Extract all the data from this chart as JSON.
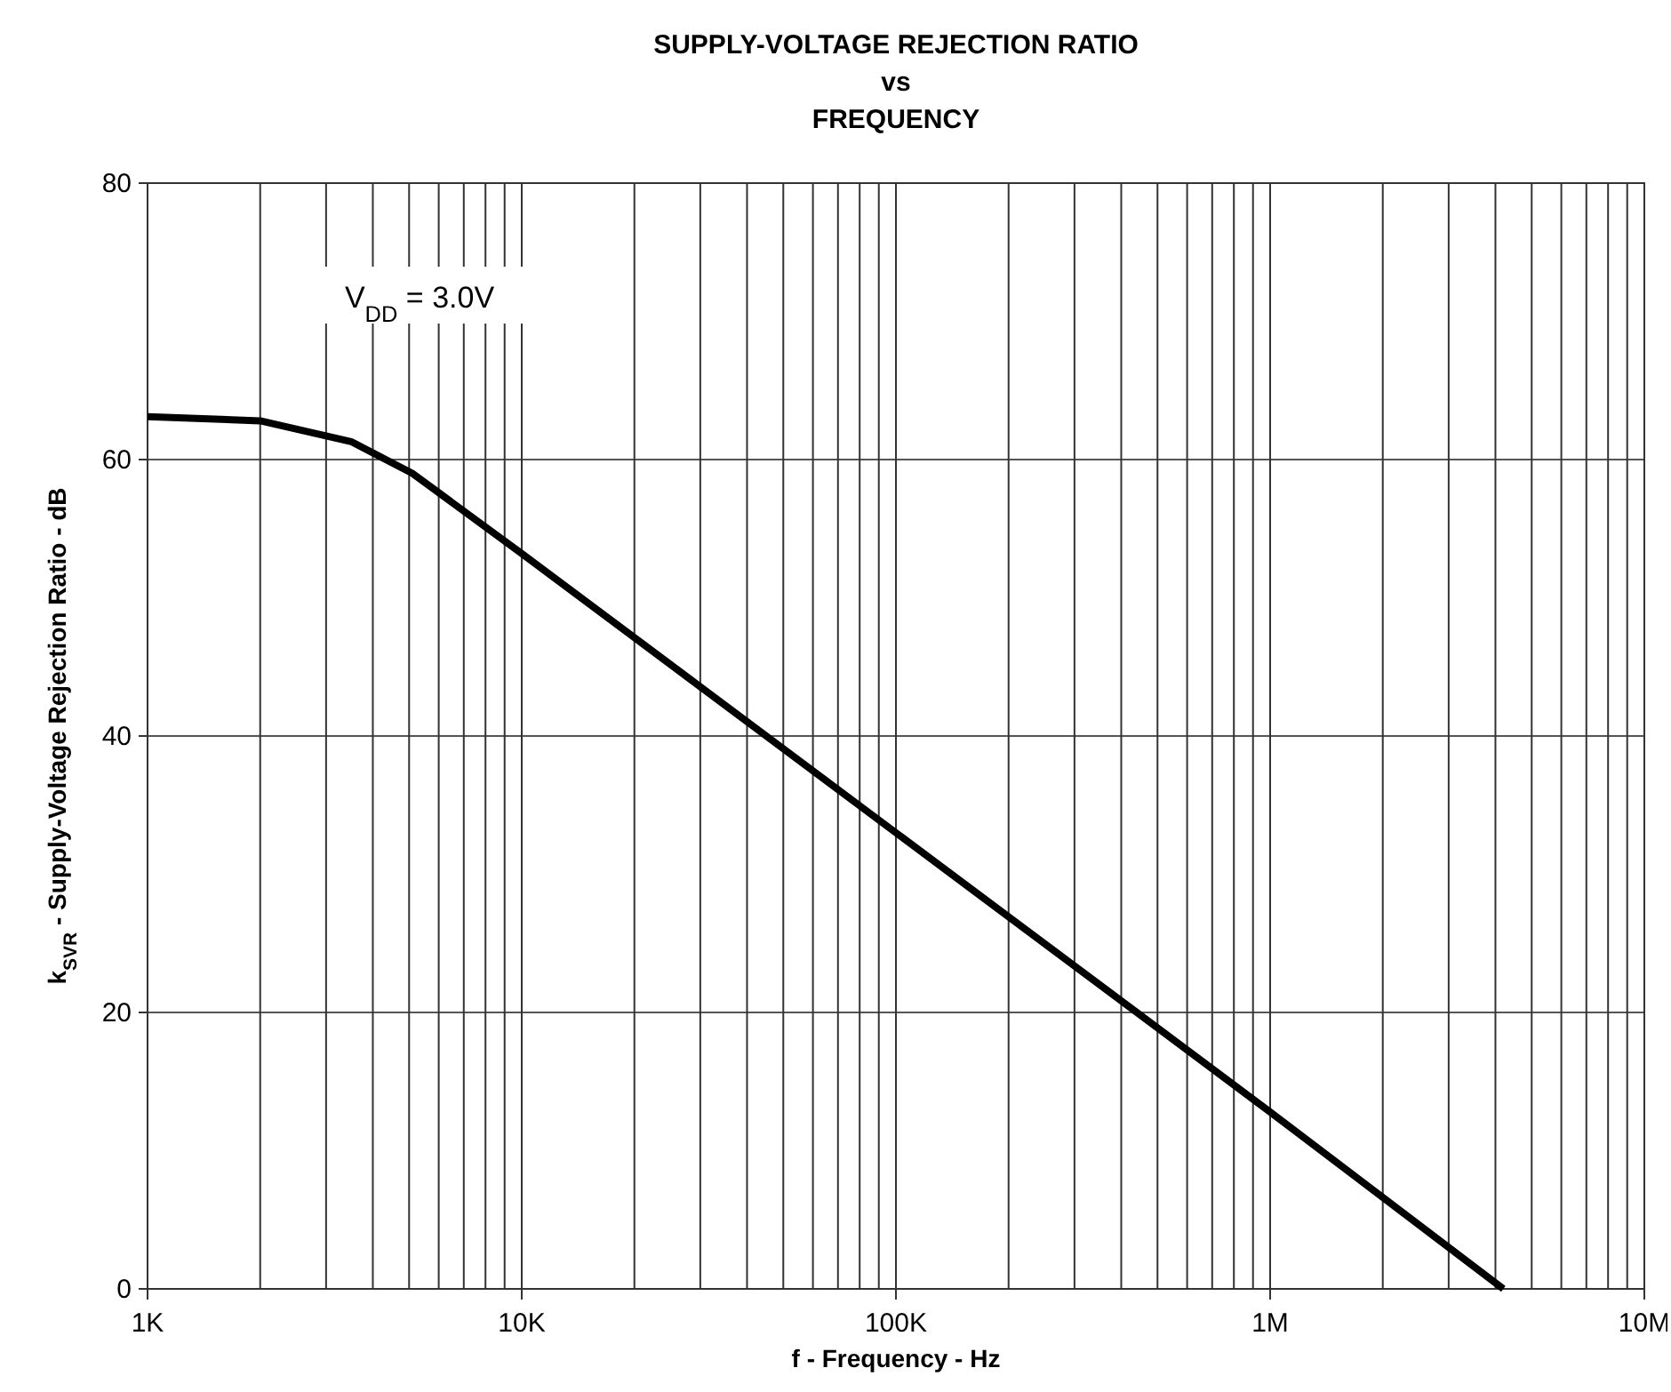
{
  "chart_data": {
    "type": "line",
    "title": "SUPPLY-VOLTAGE REJECTION RATIO\nvs\nFREQUENCY",
    "xlabel": "f - Frequency - Hz",
    "ylabel": "k$_{SVR}$ - Supply-Voltage Rejection Ratio - dB",
    "annotations": [
      "V$_{DD}$ = 3.0V"
    ],
    "x": [
      1000,
      2000,
      3500,
      5100,
      10000,
      100000,
      1000000,
      4200000
    ],
    "series": [
      {
        "color": "#000000",
        "values": [
          63.1,
          62.8,
          61.3,
          59,
          53.2,
          33,
          12.8,
          0
        ]
      }
    ],
    "log": "x",
    "grid": true,
    "marker": "none",
    "line_style": "solid",
    "xlim": [
      1000,
      10000000
    ],
    "ylim": [
      0,
      80
    ],
    "yticks": [
      0,
      20,
      40,
      60,
      80
    ],
    "xticks": [
      {
        "value": 1000,
        "label": "1K"
      },
      {
        "value": 2000,
        "label": null
      },
      {
        "value": 3000,
        "label": null
      },
      {
        "value": 4000,
        "label": null
      },
      {
        "value": 5000,
        "label": null
      },
      {
        "value": 6000,
        "label": null
      },
      {
        "value": 7000,
        "label": null
      },
      {
        "value": 8000,
        "label": null
      },
      {
        "value": 9000,
        "label": null
      },
      {
        "value": 10000,
        "label": "10K"
      },
      {
        "value": 20000,
        "label": null
      },
      {
        "value": 30000,
        "label": null
      },
      {
        "value": 40000,
        "label": null
      },
      {
        "value": 50000,
        "label": null
      },
      {
        "value": 60000,
        "label": null
      },
      {
        "value": 70000,
        "label": null
      },
      {
        "value": 80000,
        "label": null
      },
      {
        "value": 90000,
        "label": null
      },
      {
        "value": 100000,
        "label": "100K"
      },
      {
        "value": 200000,
        "label": null
      },
      {
        "value": 300000,
        "label": null
      },
      {
        "value": 400000,
        "label": null
      },
      {
        "value": 500000,
        "label": null
      },
      {
        "value": 600000,
        "label": null
      },
      {
        "value": 700000,
        "label": null
      },
      {
        "value": 800000,
        "label": null
      },
      {
        "value": 900000,
        "label": null
      },
      {
        "value": 1000000,
        "label": "1M"
      },
      {
        "value": 2000000,
        "label": null
      },
      {
        "value": 3000000,
        "label": null
      },
      {
        "value": 4000000,
        "label": null
      },
      {
        "value": 5000000,
        "label": null
      },
      {
        "value": 6000000,
        "label": null
      },
      {
        "value": 7000000,
        "label": null
      },
      {
        "value": 8000000,
        "label": null
      },
      {
        "value": 9000000,
        "label": null
      },
      {
        "value": 10000000,
        "label": "10M"
      }
    ]
  }
}
